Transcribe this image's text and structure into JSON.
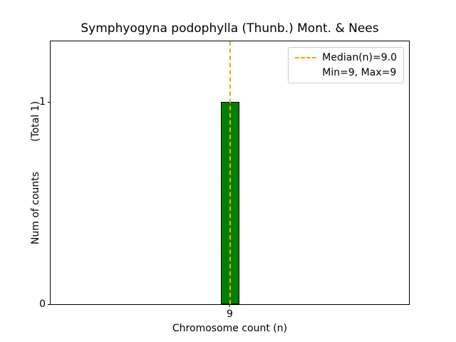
{
  "chart_data": {
    "type": "bar",
    "title": "Symphyogyna podophylla (Thunb.) Mont. & Nees",
    "xlabel": "Chromosome count (n)",
    "ylabel": "Num of counts",
    "ylabel_annotation": "(Total 1)",
    "categories": [
      "9"
    ],
    "values": [
      1
    ],
    "ylim": [
      0,
      1.3
    ],
    "yticks": [
      0,
      1
    ],
    "ytick_labels": [
      "0",
      "1"
    ],
    "xtick_labels": [
      "9"
    ],
    "grid": false,
    "bar_color": "#008000",
    "bar_edge_color": "#000000",
    "median_line": {
      "x": 9,
      "color": "#ffa500",
      "style": "dashed"
    },
    "legend": {
      "position": "upper right",
      "entries": [
        {
          "label": "Median(n)=9.0",
          "sample": "dashed-line",
          "color": "#ffa500"
        },
        {
          "label": "Min=9, Max=9",
          "sample": "none"
        }
      ]
    }
  }
}
